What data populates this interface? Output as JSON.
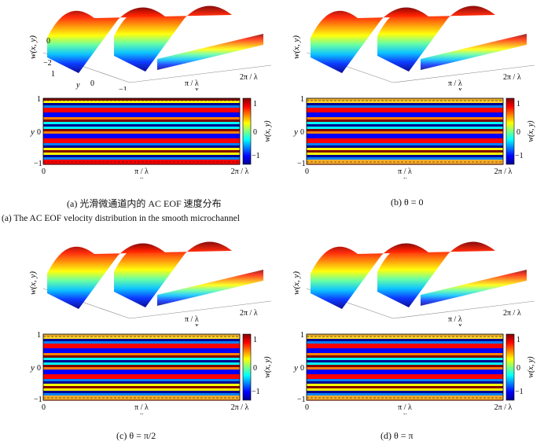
{
  "captions": {
    "a_cn": "(a) 光滑微通道内的 AC EOF 速度分布",
    "a_en": "(a) The AC EOF velocity distribution in the smooth microchannel",
    "b": "(b) θ = 0",
    "c": "(c) θ = π/2",
    "d": "(d) θ = π"
  },
  "labels": {
    "w_axis": "w(x, y)",
    "y_axis": "y",
    "x_axis": "x",
    "x_mid": "π / λ",
    "x_end": "2π / λ",
    "y_top": "1",
    "y_zero": "0",
    "y_bottom": "−1",
    "surf_w_top": "0",
    "surf_w_bot": "−2",
    "surf_y_1": "1",
    "surf_y_0": "0",
    "surf_y_m1": "−1",
    "cb_ticks": [
      "1",
      "0",
      "−1"
    ]
  },
  "colors": {
    "jet": [
      "#00008f",
      "#0000ff",
      "#0080ff",
      "#00ffff",
      "#80ff80",
      "#ffff00",
      "#ff8000",
      "#ff0000",
      "#800000"
    ]
  }
}
